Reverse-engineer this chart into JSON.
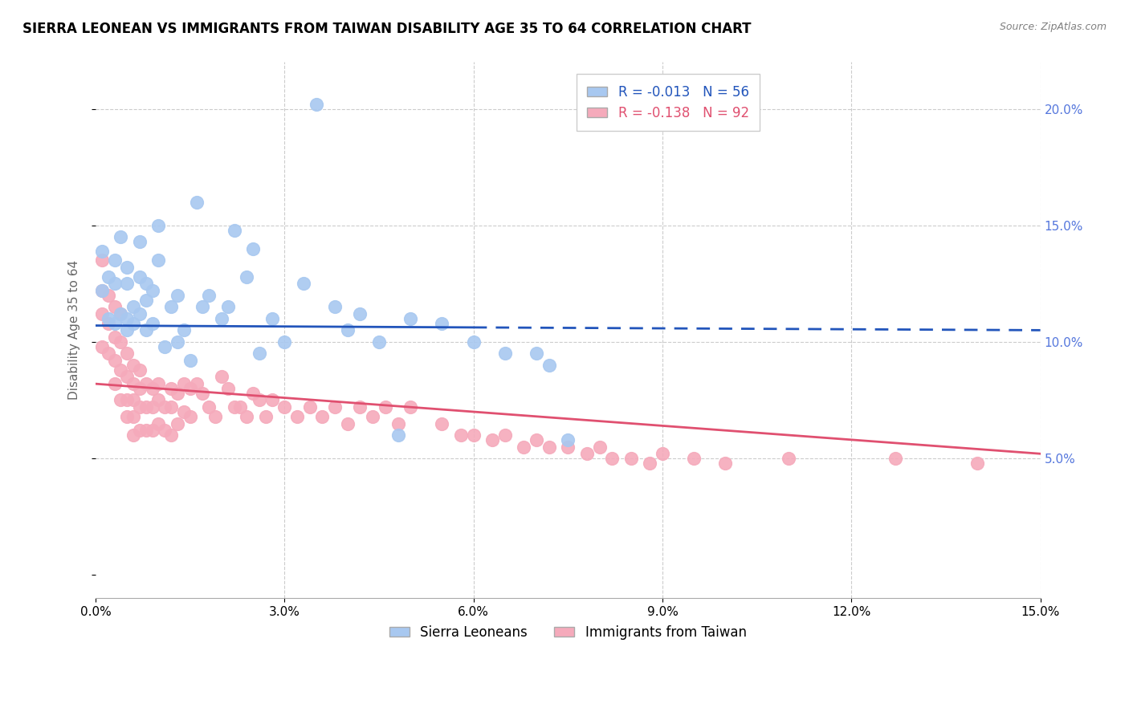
{
  "title": "SIERRA LEONEAN VS IMMIGRANTS FROM TAIWAN DISABILITY AGE 35 TO 64 CORRELATION CHART",
  "source": "Source: ZipAtlas.com",
  "ylabel": "Disability Age 35 to 64",
  "xlim": [
    0.0,
    0.15
  ],
  "ylim": [
    -0.01,
    0.22
  ],
  "xticks": [
    0.0,
    0.03,
    0.06,
    0.09,
    0.12,
    0.15
  ],
  "yticks_right": [
    0.05,
    0.1,
    0.15,
    0.2
  ],
  "blue_label": "Sierra Leoneans",
  "pink_label": "Immigrants from Taiwan",
  "blue_R": -0.013,
  "blue_N": 56,
  "pink_R": -0.138,
  "pink_N": 92,
  "blue_color": "#A8C8F0",
  "pink_color": "#F5AABB",
  "blue_line_color": "#2255BB",
  "pink_line_color": "#E05070",
  "background_color": "#FFFFFF",
  "grid_color": "#CCCCCC",
  "title_fontsize": 12,
  "axis_fontsize": 11,
  "legend_fontsize": 12,
  "blue_trend_start": 0.107,
  "blue_trend_end": 0.105,
  "pink_trend_start": 0.082,
  "pink_trend_end": 0.052,
  "blue_x": [
    0.001,
    0.001,
    0.002,
    0.002,
    0.003,
    0.003,
    0.003,
    0.004,
    0.004,
    0.005,
    0.005,
    0.005,
    0.005,
    0.006,
    0.006,
    0.007,
    0.007,
    0.007,
    0.008,
    0.008,
    0.008,
    0.009,
    0.009,
    0.01,
    0.01,
    0.011,
    0.012,
    0.013,
    0.013,
    0.014,
    0.015,
    0.016,
    0.017,
    0.018,
    0.02,
    0.021,
    0.022,
    0.024,
    0.025,
    0.026,
    0.028,
    0.03,
    0.033,
    0.035,
    0.038,
    0.04,
    0.042,
    0.045,
    0.048,
    0.05,
    0.055,
    0.06,
    0.065,
    0.07,
    0.072,
    0.075
  ],
  "blue_y": [
    0.139,
    0.122,
    0.128,
    0.11,
    0.135,
    0.125,
    0.108,
    0.145,
    0.112,
    0.132,
    0.11,
    0.125,
    0.105,
    0.115,
    0.108,
    0.143,
    0.128,
    0.112,
    0.125,
    0.118,
    0.105,
    0.122,
    0.108,
    0.15,
    0.135,
    0.098,
    0.115,
    0.12,
    0.1,
    0.105,
    0.092,
    0.16,
    0.115,
    0.12,
    0.11,
    0.115,
    0.148,
    0.128,
    0.14,
    0.095,
    0.11,
    0.1,
    0.125,
    0.202,
    0.115,
    0.105,
    0.112,
    0.1,
    0.06,
    0.11,
    0.108,
    0.1,
    0.095,
    0.095,
    0.09,
    0.058
  ],
  "pink_x": [
    0.001,
    0.001,
    0.001,
    0.001,
    0.002,
    0.002,
    0.002,
    0.003,
    0.003,
    0.003,
    0.003,
    0.004,
    0.004,
    0.004,
    0.004,
    0.005,
    0.005,
    0.005,
    0.005,
    0.006,
    0.006,
    0.006,
    0.006,
    0.006,
    0.007,
    0.007,
    0.007,
    0.007,
    0.008,
    0.008,
    0.008,
    0.009,
    0.009,
    0.009,
    0.01,
    0.01,
    0.01,
    0.011,
    0.011,
    0.012,
    0.012,
    0.012,
    0.013,
    0.013,
    0.014,
    0.014,
    0.015,
    0.015,
    0.016,
    0.017,
    0.018,
    0.019,
    0.02,
    0.021,
    0.022,
    0.023,
    0.024,
    0.025,
    0.026,
    0.027,
    0.028,
    0.03,
    0.032,
    0.034,
    0.036,
    0.038,
    0.04,
    0.042,
    0.044,
    0.046,
    0.048,
    0.05,
    0.055,
    0.058,
    0.06,
    0.063,
    0.065,
    0.068,
    0.07,
    0.072,
    0.075,
    0.078,
    0.08,
    0.082,
    0.085,
    0.088,
    0.09,
    0.095,
    0.1,
    0.11,
    0.127,
    0.14
  ],
  "pink_y": [
    0.135,
    0.122,
    0.112,
    0.098,
    0.12,
    0.108,
    0.095,
    0.115,
    0.102,
    0.092,
    0.082,
    0.112,
    0.1,
    0.088,
    0.075,
    0.095,
    0.085,
    0.075,
    0.068,
    0.09,
    0.082,
    0.075,
    0.068,
    0.06,
    0.088,
    0.08,
    0.072,
    0.062,
    0.082,
    0.072,
    0.062,
    0.08,
    0.072,
    0.062,
    0.082,
    0.075,
    0.065,
    0.072,
    0.062,
    0.08,
    0.072,
    0.06,
    0.078,
    0.065,
    0.082,
    0.07,
    0.08,
    0.068,
    0.082,
    0.078,
    0.072,
    0.068,
    0.085,
    0.08,
    0.072,
    0.072,
    0.068,
    0.078,
    0.075,
    0.068,
    0.075,
    0.072,
    0.068,
    0.072,
    0.068,
    0.072,
    0.065,
    0.072,
    0.068,
    0.072,
    0.065,
    0.072,
    0.065,
    0.06,
    0.06,
    0.058,
    0.06,
    0.055,
    0.058,
    0.055,
    0.055,
    0.052,
    0.055,
    0.05,
    0.05,
    0.048,
    0.052,
    0.05,
    0.048,
    0.05,
    0.05,
    0.048
  ]
}
